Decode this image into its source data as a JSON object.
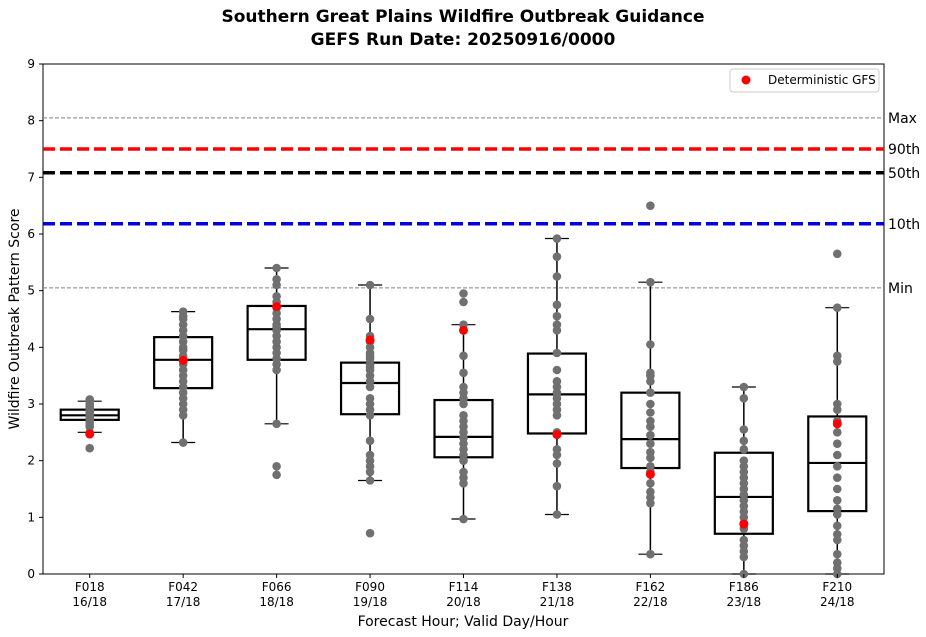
{
  "chart_data": {
    "type": "box",
    "title_line1": "Southern Great Plains Wildfire Outbreak Guidance",
    "title_line2": "GEFS Run Date: 20250916/0000",
    "xlabel": "Forecast Hour; Valid Day/Hour",
    "ylabel": "Wildfire Outbreak Pattern Score",
    "ylim": [
      0,
      9
    ],
    "yticks": [
      0,
      1,
      2,
      3,
      4,
      5,
      6,
      7,
      8,
      9
    ],
    "legend": {
      "label": "Deterministic GFS",
      "color": "#ff0000",
      "position": "top-right"
    },
    "reference_lines": [
      {
        "label": "Max",
        "value": 8.05,
        "color": "#808080",
        "style": "dashed-thin"
      },
      {
        "label": "90th",
        "value": 7.5,
        "color": "#ff0000",
        "style": "dashed-thick"
      },
      {
        "label": "50th",
        "value": 7.08,
        "color": "#000000",
        "style": "dashed-thick"
      },
      {
        "label": "10th",
        "value": 6.18,
        "color": "#0000dd",
        "style": "dashed-thick"
      },
      {
        "label": "Min",
        "value": 5.05,
        "color": "#808080",
        "style": "dashed-thin"
      }
    ],
    "colors": {
      "member": "#707070",
      "deterministic": "#ff0000",
      "box": "#000000"
    },
    "categories": [
      {
        "hour": "F018",
        "valid": "16/18",
        "whisker_low": 2.5,
        "q1": 2.72,
        "median": 2.8,
        "q3": 2.9,
        "whisker_high": 3.05,
        "members": [
          2.22,
          2.5,
          2.6,
          2.65,
          2.7,
          2.72,
          2.75,
          2.78,
          2.8,
          2.82,
          2.85,
          2.88,
          2.9,
          2.92,
          2.95,
          2.98,
          3.0,
          3.05,
          3.08
        ],
        "deterministic": 2.47
      },
      {
        "hour": "F042",
        "valid": "17/18",
        "whisker_low": 2.32,
        "q1": 3.28,
        "median": 3.78,
        "q3": 4.18,
        "whisker_high": 4.63,
        "members": [
          2.32,
          2.8,
          2.9,
          3.0,
          3.1,
          3.2,
          3.3,
          3.4,
          3.5,
          3.6,
          3.7,
          3.85,
          3.95,
          4.0,
          4.1,
          4.2,
          4.3,
          4.4,
          4.5,
          4.55,
          4.63
        ],
        "deterministic": 3.77
      },
      {
        "hour": "F066",
        "valid": "18/18",
        "whisker_low": 2.65,
        "q1": 3.78,
        "median": 4.32,
        "q3": 4.73,
        "whisker_high": 5.4,
        "members": [
          1.75,
          1.9,
          2.65,
          3.6,
          3.7,
          3.8,
          3.9,
          4.0,
          4.1,
          4.2,
          4.3,
          4.35,
          4.4,
          4.5,
          4.6,
          4.7,
          4.8,
          4.9,
          5.1,
          5.2,
          5.4
        ],
        "deterministic": 4.72
      },
      {
        "hour": "F090",
        "valid": "19/18",
        "whisker_low": 1.65,
        "q1": 2.82,
        "median": 3.37,
        "q3": 3.73,
        "whisker_high": 5.1,
        "members": [
          0.72,
          1.65,
          1.8,
          1.9,
          2.0,
          2.1,
          2.35,
          2.8,
          2.9,
          3.0,
          3.1,
          3.3,
          3.4,
          3.5,
          3.6,
          3.65,
          3.7,
          3.8,
          3.85,
          3.9,
          4.0,
          4.1,
          4.2,
          4.5,
          5.1
        ],
        "deterministic": 4.13
      },
      {
        "hour": "F114",
        "valid": "20/18",
        "whisker_low": 0.97,
        "q1": 2.06,
        "median": 2.42,
        "q3": 3.07,
        "whisker_high": 4.4,
        "members": [
          0.97,
          1.6,
          1.7,
          1.8,
          2.0,
          2.1,
          2.2,
          2.3,
          2.4,
          2.5,
          2.6,
          2.7,
          2.8,
          3.0,
          3.1,
          3.2,
          3.3,
          3.55,
          3.85,
          4.4,
          4.8,
          4.95
        ],
        "deterministic": 4.3
      },
      {
        "hour": "F138",
        "valid": "21/18",
        "whisker_low": 1.05,
        "q1": 2.48,
        "median": 3.17,
        "q3": 3.89,
        "whisker_high": 5.92,
        "members": [
          1.05,
          1.55,
          1.95,
          2.1,
          2.2,
          2.5,
          2.8,
          2.9,
          3.0,
          3.1,
          3.2,
          3.3,
          3.4,
          3.6,
          3.9,
          4.3,
          4.4,
          4.55,
          4.75,
          5.25,
          5.6,
          5.92
        ],
        "deterministic": 2.46
      },
      {
        "hour": "F162",
        "valid": "22/18",
        "whisker_low": 0.35,
        "q1": 1.87,
        "median": 2.38,
        "q3": 3.2,
        "whisker_high": 5.15,
        "members": [
          0.35,
          1.25,
          1.35,
          1.45,
          1.6,
          1.8,
          1.9,
          2.05,
          2.15,
          2.3,
          2.45,
          2.6,
          2.7,
          2.85,
          3.0,
          3.2,
          3.4,
          3.5,
          3.55,
          4.05,
          5.15,
          6.5
        ],
        "deterministic": 1.76
      },
      {
        "hour": "F186",
        "valid": "23/18",
        "whisker_low": 0.0,
        "q1": 0.71,
        "median": 1.36,
        "q3": 2.14,
        "whisker_high": 3.3,
        "members": [
          0.0,
          0.3,
          0.4,
          0.5,
          0.6,
          0.8,
          0.9,
          1.0,
          1.1,
          1.2,
          1.3,
          1.4,
          1.5,
          1.6,
          1.7,
          1.8,
          1.9,
          2.0,
          2.2,
          2.35,
          2.55,
          3.1,
          3.3
        ],
        "deterministic": 0.88
      },
      {
        "hour": "F210",
        "valid": "24/18",
        "whisker_low": 0.0,
        "q1": 1.11,
        "median": 1.96,
        "q3": 2.78,
        "whisker_high": 4.7,
        "members": [
          0.0,
          0.1,
          0.2,
          0.35,
          0.6,
          0.7,
          0.85,
          1.05,
          1.15,
          1.3,
          1.5,
          1.7,
          1.9,
          2.1,
          2.3,
          2.5,
          2.7,
          2.9,
          3.0,
          3.75,
          3.85,
          4.7,
          5.65
        ],
        "deterministic": 2.65
      }
    ]
  }
}
